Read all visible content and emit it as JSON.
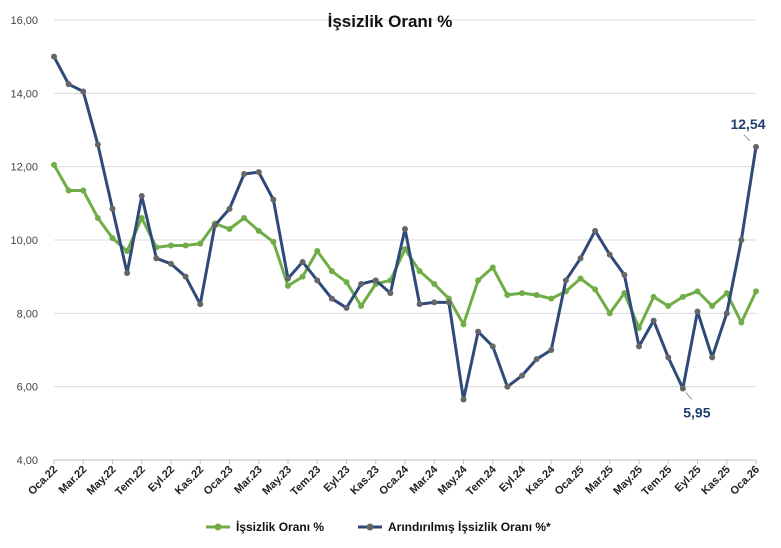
{
  "chart_data": {
    "type": "line",
    "title": "İşsizlik Oranı %",
    "xlabel": "",
    "ylabel": "",
    "ylim": [
      4,
      16
    ],
    "yticks": [
      "4,00",
      "6,00",
      "8,00",
      "10,00",
      "12,00",
      "14,00",
      "16,00"
    ],
    "grid": "horizontal",
    "legend": "bottom",
    "x": [
      "Oca.22",
      "Şub.22",
      "Mar.22",
      "Nis.22",
      "May.22",
      "Haz.22",
      "Tem.22",
      "Ağu.22",
      "Eyl.22",
      "Eki.22",
      "Kas.22",
      "Ara.22",
      "Oca.23",
      "Şub.23",
      "Mar.23",
      "Nis.23",
      "May.23",
      "Haz.23",
      "Tem.23",
      "Ağu.23",
      "Eyl.23",
      "Eki.23",
      "Kas.23",
      "Ara.23",
      "Oca.24",
      "Şub.24",
      "Mar.24",
      "Nis.24",
      "May.24",
      "Haz.24",
      "Tem.24",
      "Ağu.24",
      "Eyl.24",
      "Eki.24",
      "Kas.24",
      "Ara.24",
      "Oca.25",
      "Şub.25",
      "Mar.25",
      "Nis.25",
      "May.25",
      "Haz.25",
      "Tem.25",
      "Ağu.25",
      "Eyl.25",
      "Eki.25",
      "Kas.25",
      "Ara.25",
      "Oca.26"
    ],
    "xtick_labels": [
      "Oca.22",
      "Mar.22",
      "May.22",
      "Tem.22",
      "Eyl.22",
      "Kas.22",
      "Oca.23",
      "Mar.23",
      "May.23",
      "Tem.23",
      "Eyl.23",
      "Kas.23",
      "Oca.24",
      "Mar.24",
      "May.24",
      "Tem.24",
      "Eyl.24",
      "Kas.24",
      "Oca.25",
      "Mar.25",
      "May.25",
      "Tem.25",
      "Eyl.25",
      "Kas.25",
      "Oca.26"
    ],
    "series": [
      {
        "name": "İşsizlik Oranı %",
        "color": "#70ad47",
        "values": [
          12.05,
          11.35,
          11.35,
          10.6,
          10.05,
          9.7,
          10.6,
          9.8,
          9.85,
          9.85,
          9.9,
          10.45,
          10.3,
          10.6,
          10.25,
          9.95,
          8.75,
          9.0,
          9.7,
          9.15,
          8.85,
          8.2,
          8.8,
          8.9,
          9.75,
          9.15,
          8.8,
          8.4,
          7.7,
          8.9,
          9.25,
          8.5,
          8.55,
          8.5,
          8.4,
          8.6,
          8.95,
          8.65,
          8.0,
          8.55,
          7.6,
          8.45,
          8.2,
          8.45,
          8.6,
          8.2,
          8.55,
          7.75,
          8.6
        ]
      },
      {
        "name": "Arındırılmış İşsizlik Oranı %*",
        "color": "#2f4a7a",
        "marker_color": "#666666",
        "values": [
          15.0,
          14.25,
          14.05,
          12.6,
          10.85,
          9.1,
          11.2,
          9.5,
          9.35,
          9.0,
          8.25,
          10.4,
          10.85,
          11.8,
          11.85,
          11.1,
          8.95,
          9.4,
          8.9,
          8.4,
          8.15,
          8.8,
          8.9,
          8.55,
          10.3,
          8.25,
          8.3,
          8.3,
          5.65,
          7.5,
          7.1,
          6.0,
          6.3,
          6.75,
          7.0,
          8.9,
          9.5,
          10.25,
          9.6,
          9.05,
          7.1,
          7.8,
          6.8,
          5.95,
          8.05,
          6.8,
          8.0,
          10.0,
          12.54
        ]
      }
    ],
    "annotations": [
      {
        "text": "12,54",
        "series": 1,
        "index": 48
      },
      {
        "text": "5,95",
        "series": 1,
        "index": 43
      }
    ]
  }
}
